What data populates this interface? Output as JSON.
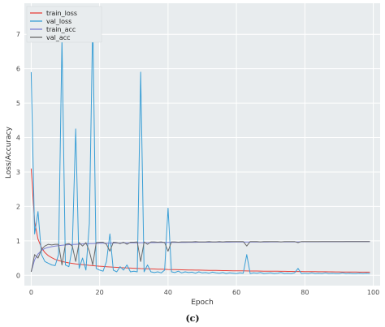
{
  "caption": "(c)",
  "chart_data": {
    "type": "line",
    "xlabel": "Epoch",
    "ylabel": "Loss/Accuracy",
    "xlim": [
      -2,
      102
    ],
    "ylim": [
      -0.3,
      7.9
    ],
    "xticks": [
      0,
      20,
      40,
      60,
      80,
      100
    ],
    "yticks": [
      0,
      1,
      2,
      3,
      4,
      5,
      6,
      7
    ],
    "grid": true,
    "legend_position": "top-left",
    "colors": {
      "plot_background": "#e8ecee",
      "grid": "#ffffff"
    },
    "x": [
      0,
      1,
      2,
      3,
      4,
      5,
      6,
      7,
      8,
      9,
      10,
      11,
      12,
      13,
      14,
      15,
      16,
      17,
      18,
      19,
      20,
      21,
      22,
      23,
      24,
      25,
      26,
      27,
      28,
      29,
      30,
      31,
      32,
      33,
      34,
      35,
      36,
      37,
      38,
      39,
      40,
      41,
      42,
      43,
      44,
      45,
      46,
      47,
      48,
      49,
      50,
      51,
      52,
      53,
      54,
      55,
      56,
      57,
      58,
      59,
      60,
      61,
      62,
      63,
      64,
      65,
      66,
      67,
      68,
      69,
      70,
      71,
      72,
      73,
      74,
      75,
      76,
      77,
      78,
      79,
      80,
      81,
      82,
      83,
      84,
      85,
      86,
      87,
      88,
      89,
      90,
      91,
      92,
      93,
      94,
      95,
      96,
      97,
      98,
      99
    ],
    "series": [
      {
        "name": "train_loss",
        "color": "#e8413a",
        "values": [
          3.1,
          1.55,
          1.05,
          0.8,
          0.66,
          0.57,
          0.51,
          0.46,
          0.43,
          0.4,
          0.38,
          0.36,
          0.345,
          0.33,
          0.32,
          0.31,
          0.3,
          0.29,
          0.28,
          0.27,
          0.262,
          0.255,
          0.248,
          0.241,
          0.235,
          0.229,
          0.223,
          0.218,
          0.213,
          0.208,
          0.204,
          0.2,
          0.196,
          0.192,
          0.188,
          0.185,
          0.182,
          0.179,
          0.176,
          0.173,
          0.17,
          0.167,
          0.165,
          0.162,
          0.16,
          0.158,
          0.155,
          0.153,
          0.151,
          0.149,
          0.147,
          0.145,
          0.143,
          0.142,
          0.14,
          0.138,
          0.137,
          0.135,
          0.134,
          0.132,
          0.131,
          0.129,
          0.128,
          0.127,
          0.125,
          0.124,
          0.123,
          0.122,
          0.12,
          0.119,
          0.118,
          0.117,
          0.116,
          0.115,
          0.114,
          0.113,
          0.112,
          0.111,
          0.11,
          0.109,
          0.108,
          0.107,
          0.106,
          0.105,
          0.104,
          0.103,
          0.102,
          0.101,
          0.1,
          0.099,
          0.098,
          0.097,
          0.096,
          0.095,
          0.094,
          0.093,
          0.092,
          0.091,
          0.09,
          0.09
        ]
      },
      {
        "name": "val_loss",
        "color": "#3a9fd6",
        "values": [
          5.9,
          1.2,
          1.85,
          0.6,
          0.4,
          0.35,
          0.3,
          0.28,
          0.6,
          6.85,
          0.3,
          0.25,
          0.8,
          4.25,
          0.2,
          0.5,
          0.15,
          1.5,
          7.45,
          0.2,
          0.15,
          0.12,
          0.4,
          1.2,
          0.15,
          0.1,
          0.25,
          0.15,
          0.3,
          0.1,
          0.12,
          0.1,
          5.9,
          0.1,
          0.3,
          0.1,
          0.08,
          0.1,
          0.07,
          0.15,
          1.95,
          0.1,
          0.08,
          0.12,
          0.07,
          0.1,
          0.08,
          0.09,
          0.06,
          0.1,
          0.07,
          0.08,
          0.06,
          0.09,
          0.07,
          0.06,
          0.08,
          0.05,
          0.07,
          0.06,
          0.05,
          0.07,
          0.06,
          0.6,
          0.05,
          0.07,
          0.06,
          0.08,
          0.05,
          0.06,
          0.07,
          0.05,
          0.06,
          0.08,
          0.05,
          0.06,
          0.05,
          0.07,
          0.2,
          0.05,
          0.06,
          0.05,
          0.07,
          0.05,
          0.06,
          0.05,
          0.07,
          0.05,
          0.06,
          0.05,
          0.05,
          0.07,
          0.05,
          0.06,
          0.05,
          0.05,
          0.06,
          0.05,
          0.06,
          0.05
        ]
      },
      {
        "name": "train_acc",
        "color": "#7b7fd4",
        "values": [
          0.1,
          0.45,
          0.62,
          0.72,
          0.78,
          0.81,
          0.83,
          0.85,
          0.86,
          0.87,
          0.88,
          0.89,
          0.895,
          0.9,
          0.905,
          0.91,
          0.915,
          0.92,
          0.922,
          0.925,
          0.928,
          0.93,
          0.932,
          0.934,
          0.936,
          0.938,
          0.94,
          0.941,
          0.942,
          0.943,
          0.944,
          0.945,
          0.946,
          0.947,
          0.948,
          0.949,
          0.95,
          0.951,
          0.952,
          0.953,
          0.954,
          0.955,
          0.955,
          0.956,
          0.957,
          0.957,
          0.958,
          0.958,
          0.959,
          0.96,
          0.96,
          0.961,
          0.961,
          0.962,
          0.962,
          0.963,
          0.963,
          0.964,
          0.964,
          0.965,
          0.965,
          0.965,
          0.966,
          0.966,
          0.966,
          0.967,
          0.967,
          0.968,
          0.968,
          0.968,
          0.969,
          0.969,
          0.969,
          0.97,
          0.97,
          0.97,
          0.971,
          0.971,
          0.971,
          0.972,
          0.972,
          0.972,
          0.973,
          0.973,
          0.973,
          0.974,
          0.974,
          0.974,
          0.975,
          0.975,
          0.975,
          0.975,
          0.976,
          0.976,
          0.976,
          0.976,
          0.977,
          0.977,
          0.977,
          0.977
        ]
      },
      {
        "name": "val_acc",
        "color": "#6a6a6a",
        "values": [
          0.1,
          0.6,
          0.5,
          0.75,
          0.85,
          0.9,
          0.88,
          0.9,
          0.9,
          0.3,
          0.9,
          0.92,
          0.85,
          0.4,
          0.95,
          0.85,
          0.95,
          0.7,
          0.3,
          0.95,
          0.96,
          0.96,
          0.9,
          0.7,
          0.96,
          0.95,
          0.92,
          0.96,
          0.9,
          0.96,
          0.96,
          0.97,
          0.4,
          0.97,
          0.9,
          0.97,
          0.97,
          0.96,
          0.97,
          0.95,
          0.7,
          0.97,
          0.97,
          0.96,
          0.97,
          0.97,
          0.97,
          0.97,
          0.98,
          0.97,
          0.97,
          0.97,
          0.98,
          0.97,
          0.97,
          0.98,
          0.97,
          0.98,
          0.98,
          0.98,
          0.98,
          0.98,
          0.98,
          0.85,
          0.98,
          0.98,
          0.98,
          0.97,
          0.98,
          0.98,
          0.98,
          0.98,
          0.98,
          0.97,
          0.98,
          0.98,
          0.98,
          0.98,
          0.95,
          0.98,
          0.98,
          0.98,
          0.98,
          0.98,
          0.98,
          0.98,
          0.98,
          0.98,
          0.98,
          0.98,
          0.98,
          0.98,
          0.98,
          0.98,
          0.98,
          0.98,
          0.98,
          0.98,
          0.98,
          0.98
        ]
      }
    ]
  }
}
